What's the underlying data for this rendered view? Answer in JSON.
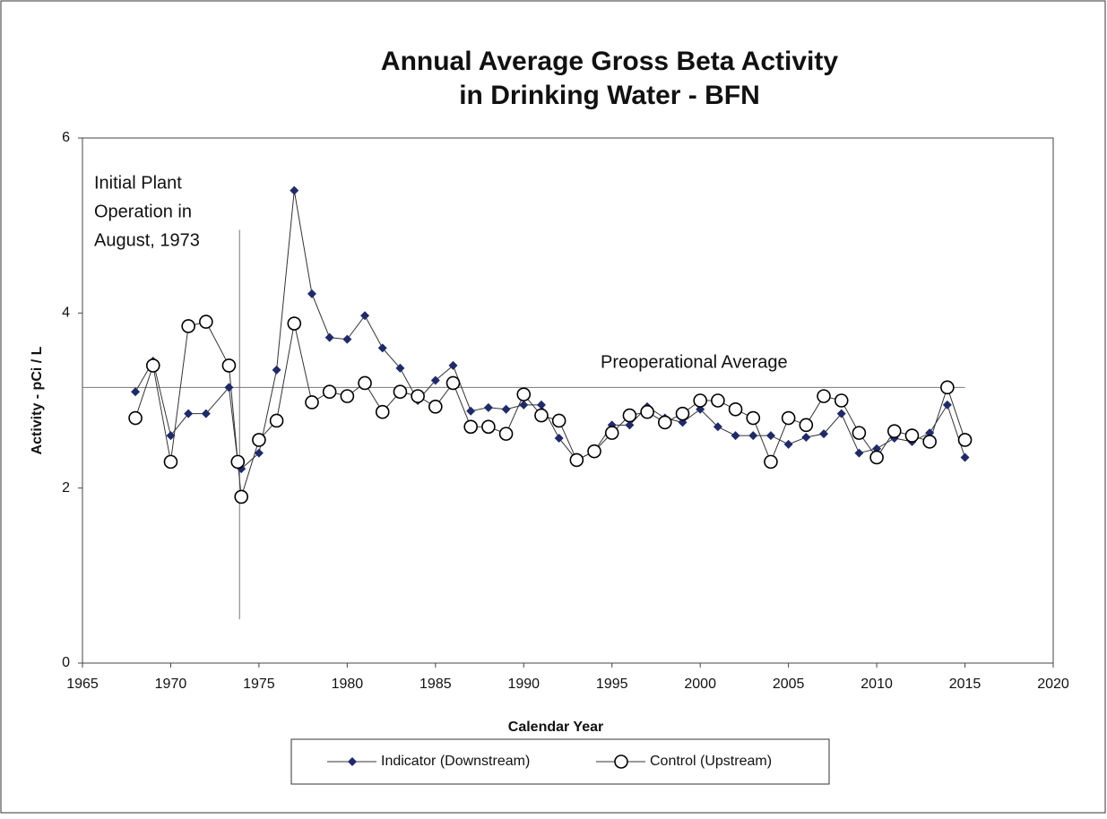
{
  "chart_data": {
    "type": "line",
    "title": [
      "Annual Average Gross Beta Activity",
      "in Drinking Water - BFN"
    ],
    "x_label": "Calendar Year",
    "y_label": "Activity  -  pCi / L",
    "x": [
      1968,
      1969,
      1970,
      1971,
      1972,
      1973.3,
      1973.8,
      1974,
      1975,
      1976,
      1977,
      1978,
      1979,
      1980,
      1981,
      1982,
      1983,
      1984,
      1985,
      1986,
      1987,
      1988,
      1989,
      1990,
      1991,
      1992,
      1993,
      1994,
      1995,
      1996,
      1997,
      1998,
      1999,
      2000,
      2001,
      2002,
      2003,
      2004,
      2005,
      2006,
      2007,
      2008,
      2009,
      2010,
      2011,
      2012,
      2013,
      2014,
      2015
    ],
    "series": [
      {
        "name": "Indicator (Downstream)",
        "color": "#1f2a6b",
        "marker": "diamond",
        "values": [
          3.1,
          3.45,
          2.6,
          2.85,
          2.85,
          3.15,
          2.3,
          2.22,
          2.4,
          3.35,
          5.4,
          4.22,
          3.72,
          3.7,
          3.97,
          3.6,
          3.37,
          3.0,
          3.23,
          3.4,
          2.88,
          2.92,
          2.9,
          2.95,
          2.95,
          2.57,
          2.32,
          2.42,
          2.72,
          2.72,
          2.93,
          2.8,
          2.75,
          2.9,
          2.7,
          2.6,
          2.6,
          2.6,
          2.5,
          2.58,
          2.62,
          2.85,
          2.4,
          2.45,
          2.57,
          2.53,
          2.63,
          2.95,
          2.35
        ]
      },
      {
        "name": "Control (Upstream)",
        "color": "#000000",
        "marker": "circle",
        "values": [
          2.8,
          3.4,
          2.3,
          3.85,
          3.9,
          3.4,
          2.3,
          1.9,
          2.55,
          2.77,
          3.88,
          2.98,
          3.1,
          3.05,
          3.2,
          2.87,
          3.1,
          3.05,
          2.93,
          3.2,
          2.7,
          2.7,
          2.62,
          3.07,
          2.83,
          2.77,
          2.32,
          2.42,
          2.63,
          2.83,
          2.87,
          2.75,
          2.85,
          3.0,
          3.0,
          2.9,
          2.8,
          2.3,
          2.8,
          2.72,
          3.05,
          3.0,
          2.63,
          2.35,
          2.65,
          2.6,
          2.53,
          3.15,
          2.55
        ]
      }
    ],
    "xlim": [
      1965,
      2020
    ],
    "xticks": [
      1965,
      1970,
      1975,
      1980,
      1985,
      1990,
      1995,
      2000,
      2005,
      2010,
      2015,
      2020
    ],
    "ylim": [
      0,
      6
    ],
    "yticks": [
      0,
      2,
      4,
      6
    ],
    "hline": {
      "y": 3.15,
      "xmin": 1965,
      "xmax": 2015,
      "label": "Preoperational Average"
    },
    "vline": {
      "x": 1973.9,
      "ymin": 0.5,
      "ymax": 4.95,
      "label": [
        "Initial Plant",
        "Operation in",
        "August, 1973"
      ]
    },
    "legend": "bottom"
  }
}
